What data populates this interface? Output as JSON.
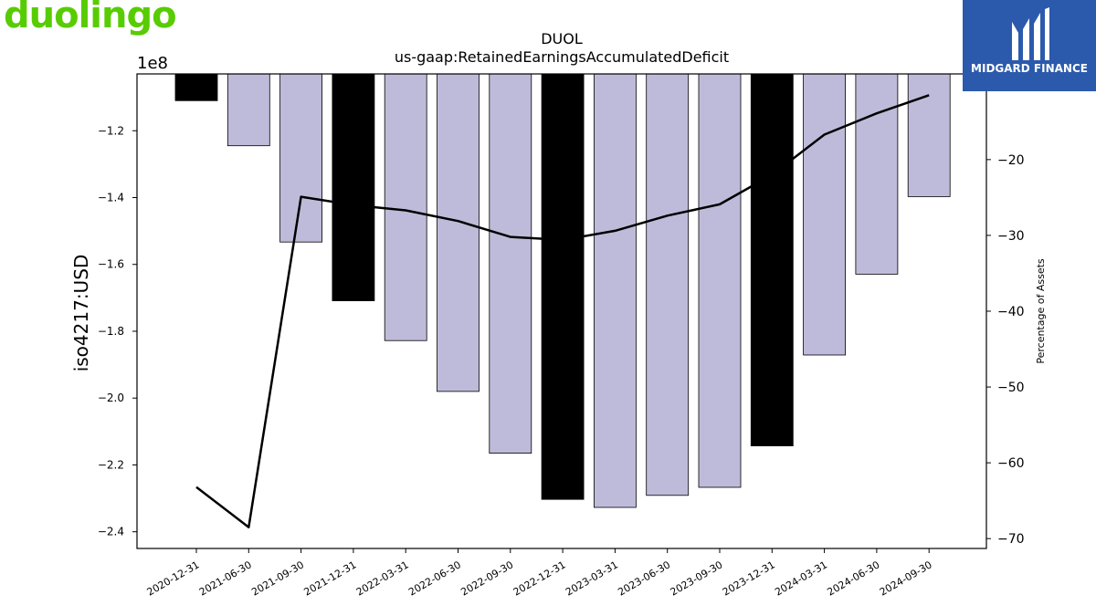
{
  "brand": {
    "name": "duolingo",
    "color": "#58cc02"
  },
  "partner": {
    "name": "MIDGARD FINANCE",
    "color": "#2b5aad"
  },
  "chart_data": {
    "type": "bar",
    "title": "DUOL",
    "subtitle": "us-gaap:RetainedEarningsAccumulatedDeficit",
    "ylabel": "iso4217:USD",
    "y2label": "Percentage of Assets",
    "y_exponent_label": "1e8",
    "ylim": [
      -245000000.0,
      -103000000.0
    ],
    "y_ticks": [
      -1.2,
      -1.4,
      -1.6,
      -1.8,
      -2.0,
      -2.2,
      -2.4
    ],
    "y_tick_labels": [
      "−1.2",
      "−1.4",
      "−1.6",
      "−1.8",
      "−2.0",
      "−2.2",
      "−2.4"
    ],
    "y_tick_scale": 100000000,
    "y2lim": [
      -71.3,
      -8.7
    ],
    "y2_ticks": [
      -20,
      -30,
      -40,
      -50,
      -60,
      -70
    ],
    "y2_tick_labels": [
      "−20",
      "−30",
      "−40",
      "−50",
      "−60",
      "−70"
    ],
    "categories": [
      "2020-12-31",
      "2021-06-30",
      "2021-09-30",
      "2021-12-31",
      "2022-03-31",
      "2022-06-30",
      "2022-09-30",
      "2022-12-31",
      "2023-03-31",
      "2023-06-30",
      "2023-09-30",
      "2023-12-31",
      "2024-03-31",
      "2024-06-30",
      "2024-09-30"
    ],
    "values": [
      -111000000,
      -124500000,
      -153300000,
      -170900000,
      -182800000,
      -198000000,
      -216500000,
      -230300000,
      -232700000,
      -229100000,
      -226700000,
      -214300000,
      -187100000,
      -162900000,
      -139700000
    ],
    "bar_highlight": [
      true,
      false,
      false,
      true,
      false,
      false,
      false,
      true,
      false,
      false,
      false,
      true,
      false,
      false,
      false
    ],
    "bar_colors": {
      "highlight": "#000000",
      "normal": "#bebbda"
    },
    "line_series": {
      "values": [
        -63.2,
        -68.5,
        -24.9,
        -26.0,
        -26.7,
        -28.1,
        -30.2,
        -30.6,
        -29.4,
        -27.4,
        -25.9,
        -22.0,
        -16.7,
        -13.9,
        -11.5
      ],
      "color": "#000000"
    },
    "grid": false,
    "legend": "none"
  }
}
